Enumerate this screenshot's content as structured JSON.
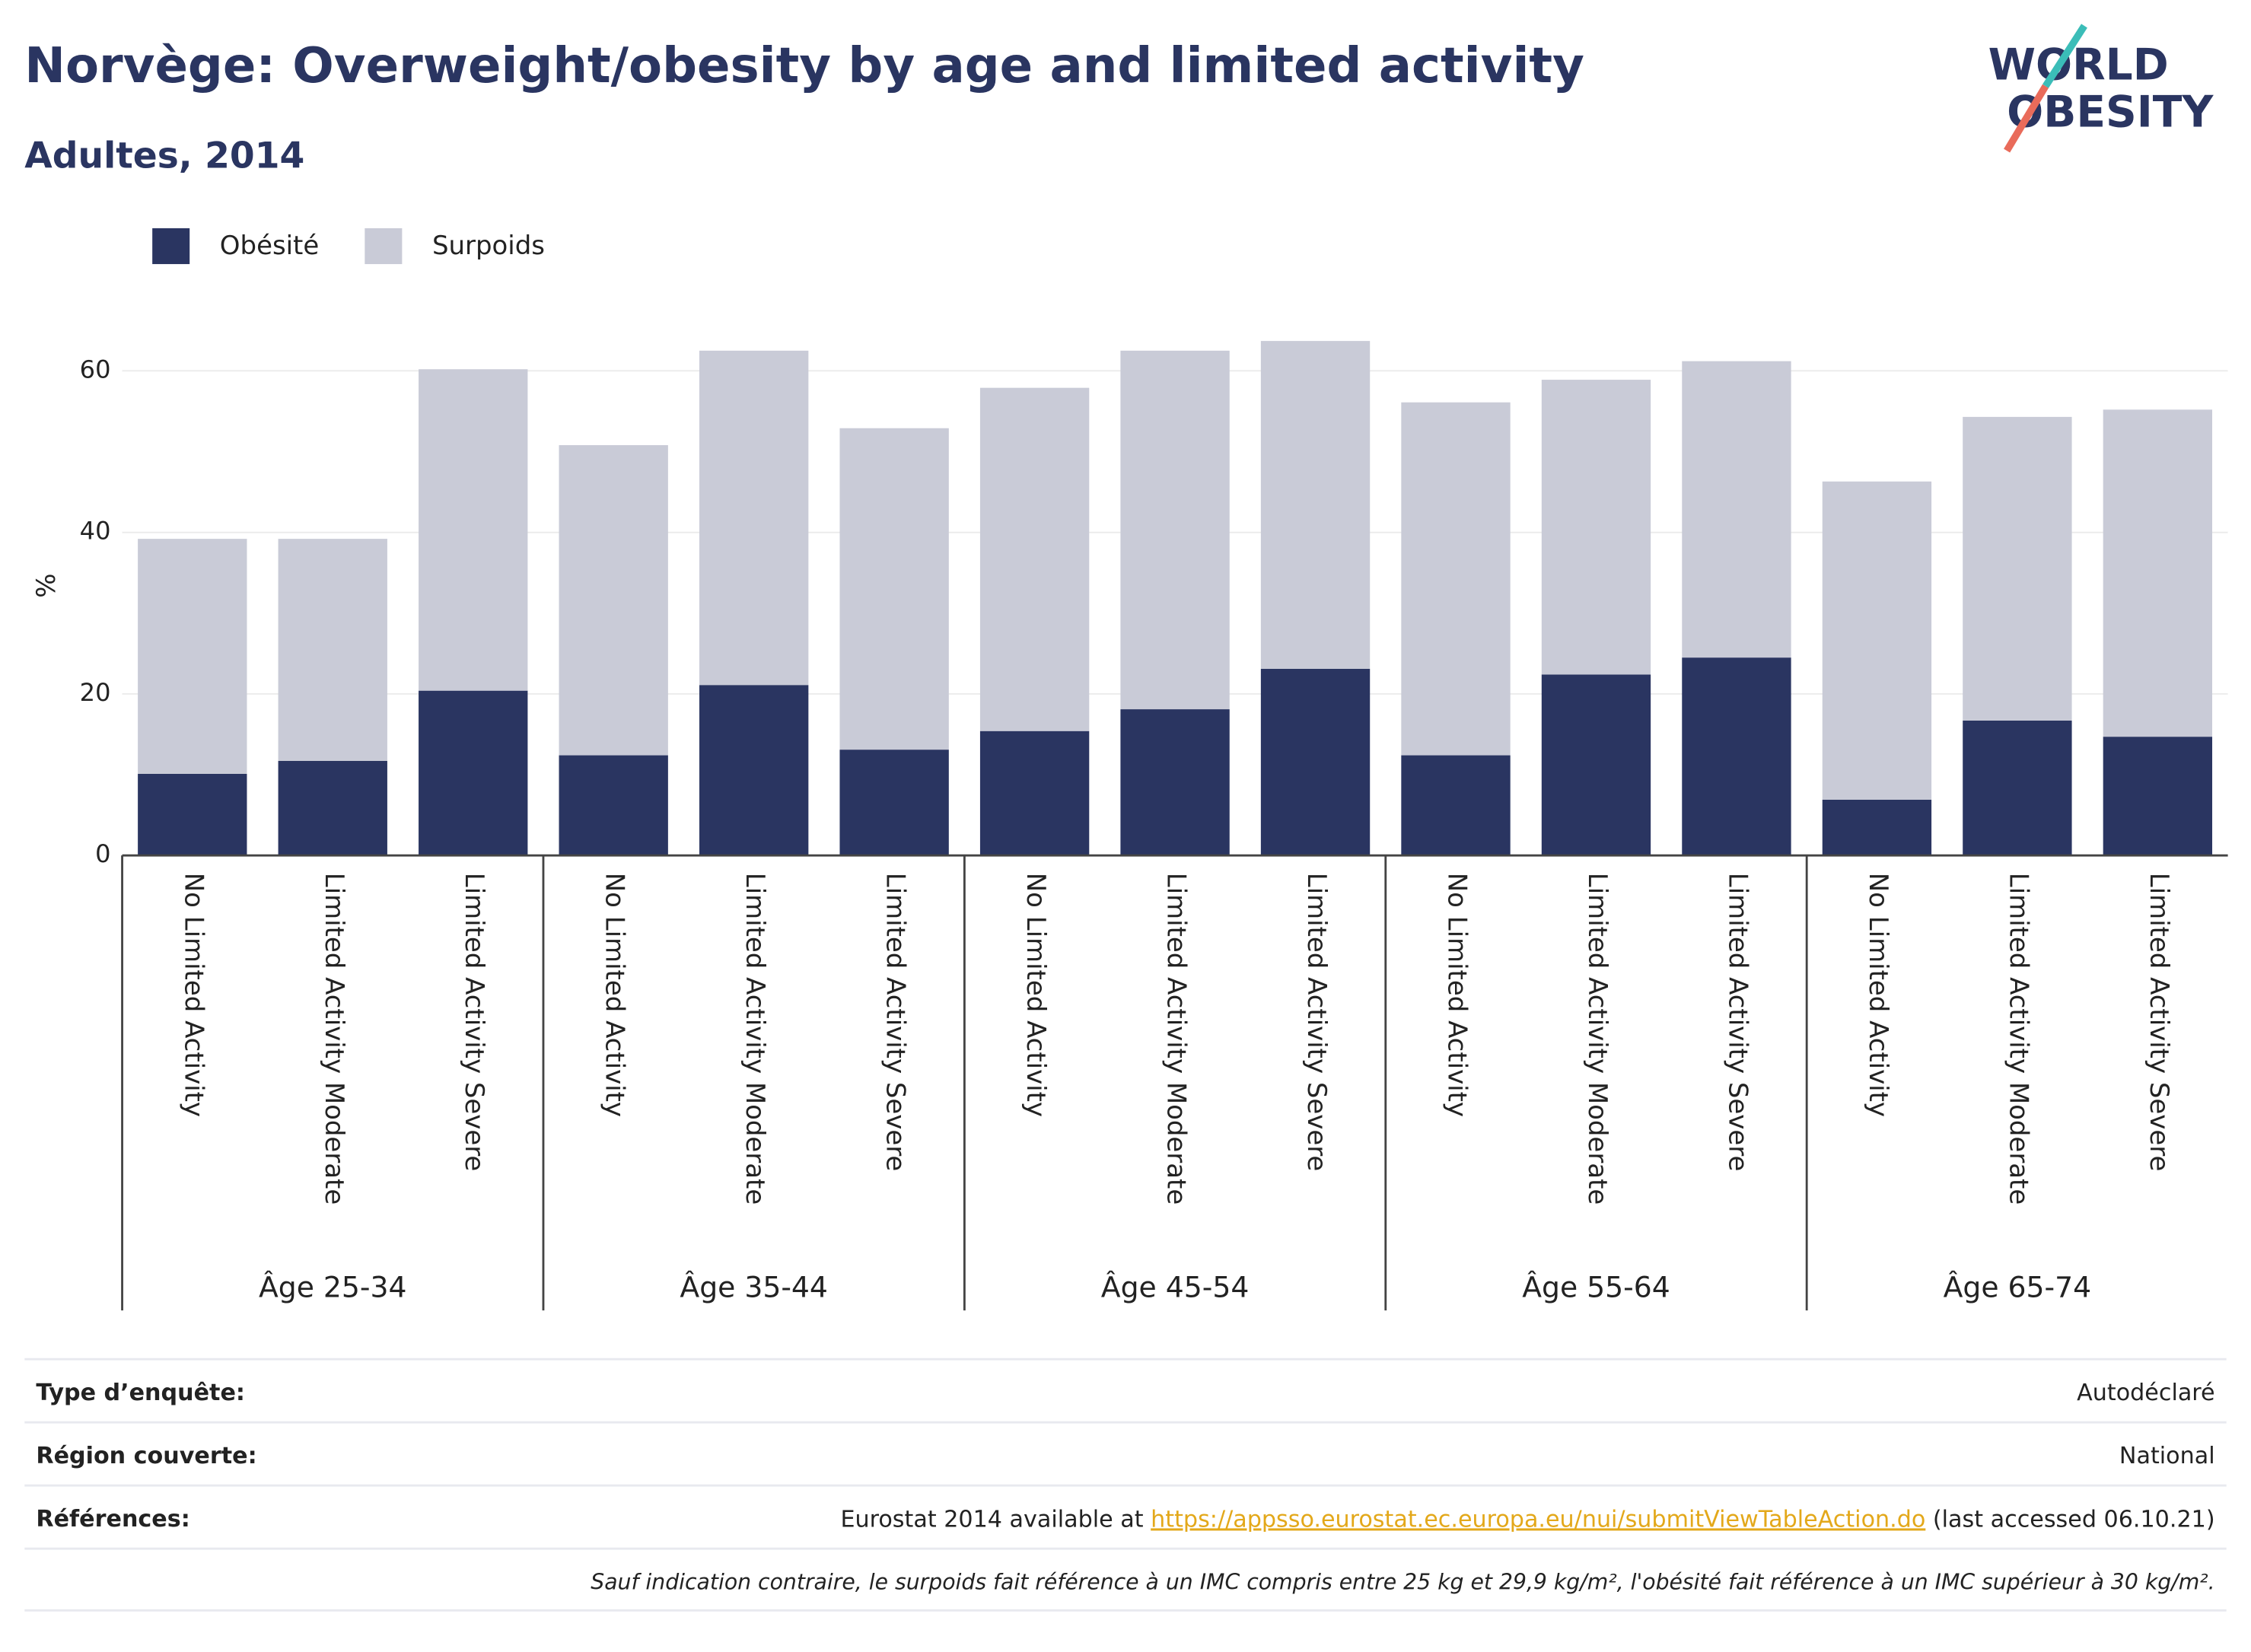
{
  "chart_data": {
    "type": "stacked_bar",
    "title": "Norvège: Overweight/obesity by age and limited activity",
    "subtitle": "Adultes, 2014",
    "y_label": "%",
    "categories": [
      "No Limited Activity",
      "Limited Activity Moderate",
      "Limited Activity Severe",
      "No Limited Activity",
      "Limited Activity Moderate",
      "Limited Activity Severe",
      "No Limited Activity",
      "Limited Activity Moderate",
      "Limited Activity Severe",
      "No Limited Activity",
      "Limited Activity Moderate",
      "Limited Activity Severe",
      "No Limited Activity",
      "Limited Activity Moderate",
      "Limited Activity Severe"
    ],
    "groups": [
      "Âge 25-34",
      "Âge 35-44",
      "Âge 45-54",
      "Âge 55-64",
      "Âge 65-74"
    ],
    "series": [
      {
        "name": "Obésité",
        "color": "#2a3561",
        "values": [
          10.1,
          11.7,
          20.4,
          12.4,
          21.1,
          13.1,
          15.4,
          18.1,
          23.1,
          12.4,
          22.4,
          24.5,
          6.9,
          16.7,
          14.7
        ]
      },
      {
        "name": "Surpoids",
        "color": "#c9cbd7",
        "values": [
          29.1,
          27.5,
          39.8,
          38.4,
          41.4,
          39.8,
          42.5,
          44.4,
          40.6,
          43.7,
          36.5,
          36.7,
          39.4,
          37.6,
          40.5
        ]
      }
    ],
    "ylim": [
      0,
      67
    ],
    "yticks": [
      0,
      20,
      40,
      60
    ],
    "grid": true,
    "legend": "top-left"
  },
  "logo": [
    "WORLD",
    "OBESITY"
  ],
  "footer": {
    "rows": [
      {
        "label": "Type d’enquête:",
        "value": "Autodéclaré"
      },
      {
        "label": "Région couverte:",
        "value": "National"
      }
    ],
    "references": {
      "label": "Références:",
      "text": "Eurostat 2014 available at",
      "link": "https://appsso.eurostat.ec.europa.eu/nui/submitViewTableAction.do",
      "suffix": "(last accessed 06.10.21)"
    },
    "note": "Sauf indication contraire, le surpoids fait référence à un IMC compris entre 25 kg et 29,9 kg/m², l'obésité fait référence à un IMC supérieur à 30 kg/m²."
  }
}
